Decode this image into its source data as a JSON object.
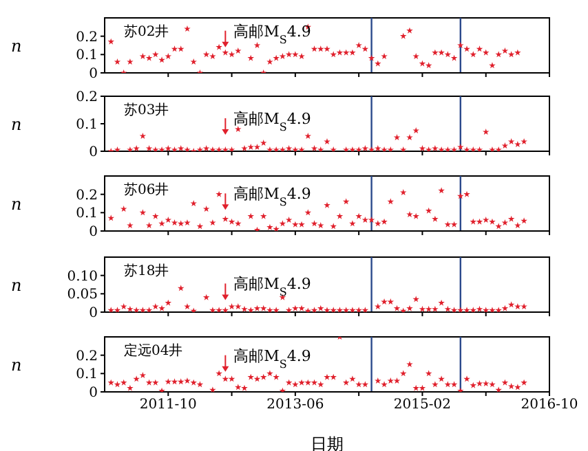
{
  "chart_data": [
    {
      "type": "scatter",
      "title": "苏02井",
      "ylabel": "n",
      "color": "#e0202c",
      "marker": "star",
      "tick_labels": "y",
      "x": [
        "2011-01",
        "2011-02",
        "2011-03",
        "2011-04",
        "2011-06",
        "2011-07",
        "2011-08",
        "2011-09",
        "2011-10",
        "2011-11",
        "2011-12",
        "2012-01",
        "2012-02",
        "2012-03",
        "2012-04",
        "2012-05",
        "2012-06",
        "2012-07",
        "2012-08",
        "2012-09",
        "2012-11",
        "2012-12",
        "2013-01",
        "2013-02",
        "2013-03",
        "2013-04",
        "2013-05",
        "2013-06",
        "2013-07",
        "2013-08",
        "2013-09",
        "2013-10",
        "2013-11",
        "2013-12",
        "2014-01",
        "2014-02",
        "2014-03",
        "2014-04",
        "2014-05",
        "2014-06",
        "2014-07",
        "2014-08",
        "2014-11",
        "2014-12",
        "2015-01",
        "2015-02",
        "2015-03",
        "2015-04",
        "2015-05",
        "2015-06",
        "2015-07",
        "2015-08",
        "2015-09",
        "2015-10",
        "2015-11",
        "2015-12",
        "2016-01",
        "2016-02",
        "2016-03",
        "2016-04",
        "2016-05"
      ],
      "values": [
        0.17,
        0.06,
        0,
        0.06,
        0.09,
        0.08,
        0.1,
        0.07,
        0.09,
        0.13,
        0.13,
        0.24,
        0.06,
        0,
        0.1,
        0.09,
        0.14,
        0.11,
        0.1,
        0.12,
        0.08,
        0.15,
        0,
        0.06,
        0.08,
        0.09,
        0.1,
        0.1,
        0.09,
        0.25,
        0.13,
        0.13,
        0.13,
        0.1,
        0.11,
        0.11,
        0.11,
        0.15,
        0.13,
        0.08,
        0.05,
        0.09,
        0.2,
        0.23,
        0.09,
        0.05,
        0.04,
        0.11,
        0.11,
        0.1,
        0.08,
        0.15,
        0.13,
        0.1,
        0.13,
        0.11,
        0.04,
        0.1,
        0.12,
        0.1,
        0.11
      ],
      "xlim": [
        "2010-12",
        "2016-10"
      ],
      "xticks": [
        {
          "value": "2011-10",
          "label": null
        },
        {
          "value": "2012-08",
          "label": null
        },
        {
          "value": "2013-06",
          "label": null
        },
        {
          "value": "2014-04",
          "label": null
        },
        {
          "value": "2015-02",
          "label": null
        },
        {
          "value": "2015-12",
          "label": null
        },
        {
          "value": "2016-10",
          "label": null
        }
      ],
      "ylim": [
        0,
        0.3
      ],
      "yticks": [
        0,
        0.1,
        0.2
      ],
      "ref_lines": [
        {
          "axis": "x",
          "value": "2014-06",
          "color": "#2b4a8c"
        },
        {
          "axis": "x",
          "value": "2015-08",
          "color": "#2b4a8c"
        }
      ],
      "annotations": [
        {
          "text": "高邮M$_{S}$4.9",
          "x": "2012-07",
          "y": 0.14
        }
      ]
    },
    {
      "type": "scatter",
      "title": "苏03井",
      "ylabel": "n",
      "color": "#e0202c",
      "marker": "star",
      "tick_labels": "y",
      "x": [
        "2011-01",
        "2011-02",
        "2011-04",
        "2011-05",
        "2011-06",
        "2011-07",
        "2011-08",
        "2011-09",
        "2011-10",
        "2011-11",
        "2011-12",
        "2012-01",
        "2012-02",
        "2012-03",
        "2012-04",
        "2012-05",
        "2012-06",
        "2012-07",
        "2012-08",
        "2012-09",
        "2012-10",
        "2012-11",
        "2012-12",
        "2013-01",
        "2013-02",
        "2013-03",
        "2013-04",
        "2013-05",
        "2013-06",
        "2013-07",
        "2013-08",
        "2013-09",
        "2013-10",
        "2013-11",
        "2013-12",
        "2014-02",
        "2014-03",
        "2014-04",
        "2014-05",
        "2014-06",
        "2014-07",
        "2014-08",
        "2014-09",
        "2014-10",
        "2014-11",
        "2014-12",
        "2015-01",
        "2015-02",
        "2015-03",
        "2015-04",
        "2015-05",
        "2015-06",
        "2015-07",
        "2015-08",
        "2015-09",
        "2015-10",
        "2015-11",
        "2015-12",
        "2016-01",
        "2016-02",
        "2016-03",
        "2016-04",
        "2016-05",
        "2016-06"
      ],
      "values": [
        0,
        0.005,
        0.005,
        0.01,
        0.055,
        0.01,
        0.005,
        0.005,
        0.01,
        0.005,
        0.01,
        0.005,
        0,
        0.005,
        0.01,
        0.005,
        0.005,
        0.005,
        0.005,
        0.08,
        0.01,
        0.015,
        0.015,
        0.03,
        0.005,
        0.005,
        0.005,
        0.01,
        0.005,
        0.005,
        0.055,
        0.01,
        0.005,
        0.035,
        0.005,
        0.005,
        0.005,
        0.005,
        0.01,
        0.005,
        0.01,
        0.005,
        0.005,
        0.05,
        0.005,
        0.05,
        0.075,
        0.01,
        0.005,
        0.01,
        0.005,
        0.005,
        0.005,
        0.015,
        0.005,
        0.005,
        0.005,
        0.07,
        0.005,
        0.005,
        0.02,
        0.035,
        0.025,
        0.035
      ],
      "xlim": [
        "2010-12",
        "2016-10"
      ],
      "xticks": [
        {
          "value": "2011-10",
          "label": null
        },
        {
          "value": "2012-08",
          "label": null
        },
        {
          "value": "2013-06",
          "label": null
        },
        {
          "value": "2014-04",
          "label": null
        },
        {
          "value": "2015-02",
          "label": null
        },
        {
          "value": "2015-12",
          "label": null
        },
        {
          "value": "2016-10",
          "label": null
        }
      ],
      "ylim": [
        0,
        0.2
      ],
      "yticks": [
        0,
        0.1,
        0.2
      ],
      "ref_lines": [
        {
          "axis": "x",
          "value": "2014-06",
          "color": "#2b4a8c"
        },
        {
          "axis": "x",
          "value": "2015-08",
          "color": "#2b4a8c"
        }
      ],
      "annotations": [
        {
          "text": "高邮M$_{S}$4.9",
          "x": "2012-07",
          "y": 0.06
        }
      ]
    },
    {
      "type": "scatter",
      "title": "苏06井",
      "ylabel": "n",
      "color": "#e0202c",
      "marker": "star",
      "tick_labels": "y",
      "x": [
        "2011-01",
        "2011-03",
        "2011-04",
        "2011-06",
        "2011-07",
        "2011-08",
        "2011-09",
        "2011-10",
        "2011-11",
        "2011-12",
        "2012-01",
        "2012-02",
        "2012-03",
        "2012-04",
        "2012-05",
        "2012-06",
        "2012-07",
        "2012-08",
        "2012-09",
        "2012-11",
        "2012-12",
        "2013-01",
        "2013-02",
        "2013-03",
        "2013-04",
        "2013-05",
        "2013-06",
        "2013-07",
        "2013-08",
        "2013-09",
        "2013-10",
        "2013-11",
        "2013-12",
        "2014-01",
        "2014-02",
        "2014-03",
        "2014-04",
        "2014-05",
        "2014-06",
        "2014-07",
        "2014-08",
        "2014-09",
        "2014-11",
        "2014-12",
        "2015-01",
        "2015-03",
        "2015-04",
        "2015-05",
        "2015-06",
        "2015-07",
        "2015-08",
        "2015-09",
        "2015-10",
        "2015-11",
        "2015-12",
        "2016-01",
        "2016-02",
        "2016-03",
        "2016-04",
        "2016-05",
        "2016-06"
      ],
      "values": [
        0.07,
        0.12,
        0.03,
        0.1,
        0.03,
        0.08,
        0.04,
        0.06,
        0.045,
        0.04,
        0.045,
        0.15,
        0.025,
        0.12,
        0.045,
        0.2,
        0.065,
        0.05,
        0.04,
        0.08,
        0.005,
        0.08,
        0.02,
        0.01,
        0.04,
        0.06,
        0.035,
        0.035,
        0.1,
        0.04,
        0.03,
        0.14,
        0.025,
        0.08,
        0.16,
        0.04,
        0.08,
        0.06,
        0.06,
        0.04,
        0.05,
        0.16,
        0.21,
        0.09,
        0.08,
        0.11,
        0.065,
        0.22,
        0.035,
        0.035,
        0.19,
        0.2,
        0.05,
        0.05,
        0.06,
        0.05,
        0.025,
        0.045,
        0.065,
        0.03,
        0.055
      ],
      "xlim": [
        "2010-12",
        "2016-10"
      ],
      "xticks": [
        {
          "value": "2011-10",
          "label": null
        },
        {
          "value": "2012-08",
          "label": null
        },
        {
          "value": "2013-06",
          "label": null
        },
        {
          "value": "2014-04",
          "label": null
        },
        {
          "value": "2015-02",
          "label": null
        },
        {
          "value": "2015-12",
          "label": null
        },
        {
          "value": "2016-10",
          "label": null
        }
      ],
      "ylim": [
        0,
        0.3
      ],
      "yticks": [
        0,
        0.1,
        0.2
      ],
      "ref_lines": [
        {
          "axis": "x",
          "value": "2014-06",
          "color": "#2b4a8c"
        },
        {
          "axis": "x",
          "value": "2015-08",
          "color": "#2b4a8c"
        }
      ],
      "annotations": [
        {
          "text": "高邮M$_{S}$4.9",
          "x": "2012-07",
          "y": 0.115
        }
      ]
    },
    {
      "type": "scatter",
      "title": "苏18井",
      "ylabel": "n",
      "color": "#e0202c",
      "marker": "star",
      "tick_labels": "y",
      "x": [
        "2011-01",
        "2011-02",
        "2011-03",
        "2011-04",
        "2011-05",
        "2011-06",
        "2011-07",
        "2011-08",
        "2011-09",
        "2011-10",
        "2011-12",
        "2012-01",
        "2012-02",
        "2012-04",
        "2012-05",
        "2012-06",
        "2012-07",
        "2012-08",
        "2012-09",
        "2012-10",
        "2012-11",
        "2012-12",
        "2013-01",
        "2013-02",
        "2013-03",
        "2013-04",
        "2013-05",
        "2013-06",
        "2013-07",
        "2013-08",
        "2013-09",
        "2013-10",
        "2013-11",
        "2013-12",
        "2014-01",
        "2014-02",
        "2014-03",
        "2014-04",
        "2014-05",
        "2014-07",
        "2014-08",
        "2014-09",
        "2014-10",
        "2014-11",
        "2014-12",
        "2015-01",
        "2015-02",
        "2015-03",
        "2015-04",
        "2015-05",
        "2015-06",
        "2015-07",
        "2015-08",
        "2015-09",
        "2015-10",
        "2015-11",
        "2015-12",
        "2016-01",
        "2016-02",
        "2016-03",
        "2016-04",
        "2016-05",
        "2016-06"
      ],
      "values": [
        0.005,
        0.005,
        0.015,
        0.008,
        0.005,
        0.005,
        0.005,
        0.015,
        0.01,
        0.025,
        0.065,
        0.015,
        0.003,
        0.04,
        0.005,
        0.005,
        0.005,
        0.015,
        0.015,
        0.008,
        0.005,
        0.01,
        0.01,
        0.005,
        0.005,
        0.04,
        0.005,
        0.01,
        0.01,
        0.003,
        0.005,
        0.01,
        0.005,
        0.005,
        0.005,
        0.005,
        0.005,
        0.005,
        0.005,
        0.015,
        0.028,
        0.028,
        0.01,
        0.003,
        0.01,
        0.035,
        0.008,
        0.008,
        0.008,
        0.025,
        0.008,
        0.005,
        0.005,
        0.005,
        0.005,
        0.008,
        0.005,
        0.005,
        0.005,
        0.01,
        0.02,
        0.015,
        0.015
      ],
      "xlim": [
        "2010-12",
        "2016-10"
      ],
      "xticks": [
        {
          "value": "2011-10",
          "label": null
        },
        {
          "value": "2012-08",
          "label": null
        },
        {
          "value": "2013-06",
          "label": null
        },
        {
          "value": "2014-04",
          "label": null
        },
        {
          "value": "2015-02",
          "label": null
        },
        {
          "value": "2015-12",
          "label": null
        },
        {
          "value": "2016-10",
          "label": null
        }
      ],
      "ylim": [
        0,
        0.15
      ],
      "yticks": [
        0,
        0.05,
        {
          "value": 0.1,
          "label": "0.10"
        }
      ],
      "ref_lines": [
        {
          "axis": "x",
          "value": "2014-06",
          "color": "#2b4a8c"
        },
        {
          "axis": "x",
          "value": "2015-08",
          "color": "#2b4a8c"
        }
      ],
      "annotations": [
        {
          "text": "高邮M$_{S}$4.9",
          "x": "2012-07",
          "y": 0.033
        }
      ]
    },
    {
      "type": "scatter",
      "title": "定远04井",
      "ylabel": "n",
      "xlabel": "日期",
      "color": "#e0202c",
      "marker": "star",
      "x": [
        "2011-01",
        "2011-02",
        "2011-03",
        "2011-04",
        "2011-05",
        "2011-06",
        "2011-07",
        "2011-08",
        "2011-09",
        "2011-10",
        "2011-11",
        "2011-12",
        "2012-01",
        "2012-02",
        "2012-03",
        "2012-05",
        "2012-06",
        "2012-07",
        "2012-08",
        "2012-09",
        "2012-10",
        "2012-11",
        "2012-12",
        "2013-01",
        "2013-02",
        "2013-03",
        "2013-04",
        "2013-05",
        "2013-06",
        "2013-07",
        "2013-08",
        "2013-09",
        "2013-10",
        "2013-11",
        "2013-12",
        "2014-01",
        "2014-02",
        "2014-03",
        "2014-04",
        "2014-05",
        "2014-07",
        "2014-08",
        "2014-09",
        "2014-10",
        "2014-11",
        "2014-12",
        "2015-01",
        "2015-02",
        "2015-03",
        "2015-04",
        "2015-05",
        "2015-06",
        "2015-07",
        "2015-08",
        "2015-09",
        "2015-10",
        "2015-11",
        "2015-12",
        "2016-01",
        "2016-02",
        "2016-03",
        "2016-04",
        "2016-05",
        "2016-06"
      ],
      "values": [
        0.05,
        0.04,
        0.05,
        0.02,
        0.07,
        0.09,
        0.05,
        0.05,
        0.005,
        0.055,
        0.055,
        0.055,
        0.06,
        0.05,
        0.04,
        0.01,
        0.1,
        0.07,
        0.07,
        0.025,
        0.02,
        0.08,
        0.07,
        0.08,
        0.1,
        0.08,
        0.005,
        0.05,
        0.04,
        0.05,
        0.05,
        0.05,
        0.04,
        0.08,
        0.08,
        0.3,
        0.05,
        0.07,
        0.04,
        0.04,
        0.06,
        0.04,
        0.06,
        0.06,
        0.1,
        0.15,
        0.02,
        0.02,
        0.1,
        0.04,
        0.07,
        0.04,
        0.04,
        0.005,
        0.07,
        0.035,
        0.045,
        0.045,
        0.04,
        0.01,
        0.05,
        0.03,
        0.025,
        0.05
      ],
      "xlim": [
        "2010-12",
        "2016-10"
      ],
      "xticks": [
        {
          "value": "2011-10",
          "label": "2011-10"
        },
        {
          "value": "2012-08",
          "label": null
        },
        {
          "value": "2013-06",
          "label": "2013-06"
        },
        {
          "value": "2014-04",
          "label": null
        },
        {
          "value": "2015-02",
          "label": "2015-02"
        },
        {
          "value": "2015-12",
          "label": null
        },
        {
          "value": "2016-10",
          "label": "2016-10"
        }
      ],
      "ylim": [
        0,
        0.3
      ],
      "yticks": [
        0,
        0.1,
        0.2
      ],
      "ref_lines": [
        {
          "axis": "x",
          "value": "2014-06",
          "color": "#2b4a8c"
        },
        {
          "axis": "x",
          "value": "2015-08",
          "color": "#2b4a8c"
        }
      ],
      "annotations": [
        {
          "text": "高邮M$_{S}$4.9",
          "x": "2012-07",
          "y": 0.11
        }
      ]
    }
  ]
}
